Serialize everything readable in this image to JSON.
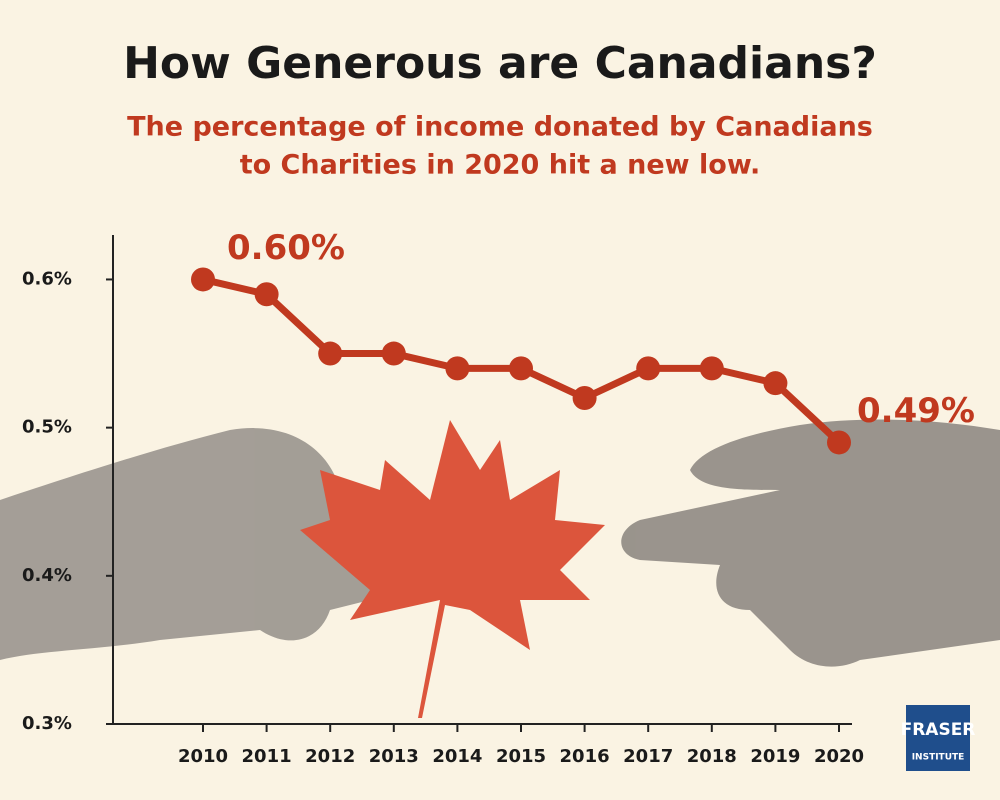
{
  "chart_data": {
    "type": "line",
    "title": "How Generous are Canadians?",
    "subtitle": [
      "The percentage of income donated by Canadians",
      "to Charities in 2020 hit a new low."
    ],
    "categories": [
      "2010",
      "2011",
      "2012",
      "2013",
      "2014",
      "2015",
      "2016",
      "2017",
      "2018",
      "2019",
      "2020"
    ],
    "values": [
      0.6,
      0.59,
      0.55,
      0.55,
      0.54,
      0.54,
      0.52,
      0.54,
      0.54,
      0.53,
      0.49
    ],
    "value_labels": [
      "0.60%",
      null,
      null,
      null,
      null,
      null,
      null,
      null,
      null,
      null,
      "0.49%"
    ],
    "color": "#c0391f",
    "ylim": [
      0.3,
      0.63
    ],
    "yticks": [
      {
        "value": 0.3,
        "label": "0.3%"
      },
      {
        "value": 0.4,
        "label": "0.4%"
      },
      {
        "value": 0.5,
        "label": "0.5%"
      },
      {
        "value": 0.6,
        "label": "0.6%"
      }
    ],
    "grid": false
  },
  "logo": {
    "line1": "FRASER",
    "line2": "INSTITUTE"
  }
}
